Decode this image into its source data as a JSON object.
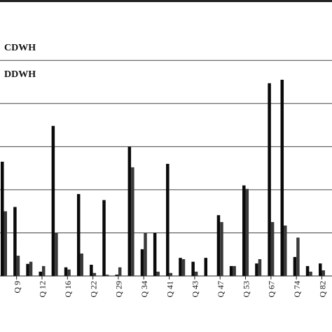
{
  "chart_data": {
    "type": "bar",
    "categories": [
      null,
      "Q 9",
      null,
      "Q 12",
      null,
      "Q 16",
      null,
      "Q 22",
      null,
      "Q 29",
      null,
      "Q 34",
      null,
      "Q 41",
      null,
      "Q 43",
      null,
      "Q 47",
      null,
      "Q 53",
      null,
      "Q 67",
      null,
      "Q 74",
      null,
      "Q 82"
    ],
    "series": [
      {
        "name": "CDWH",
        "color": "#0a0a0a",
        "values": [
          2.65,
          1.6,
          0.28,
          0.1,
          3.48,
          0.2,
          1.9,
          0.26,
          1.76,
          0.03,
          3.0,
          0.62,
          1.0,
          2.6,
          0.42,
          0.33,
          0.42,
          1.41,
          0.23,
          2.1,
          0.29,
          4.47,
          4.55,
          0.44,
          0.23,
          0.29
        ]
      },
      {
        "name": "DDWH",
        "color": "#3a3a3a",
        "values": [
          1.5,
          0.47,
          0.33,
          0.23,
          1.0,
          0.15,
          0.52,
          0.07,
          0.03,
          0.2,
          2.52,
          1.0,
          0.1,
          0.07,
          0.39,
          0.1,
          0,
          1.25,
          0.23,
          2.02,
          0.39,
          1.25,
          1.17,
          0.89,
          0.1,
          0.13
        ]
      }
    ],
    "ylim": [
      0,
      6.4
    ],
    "yticks": [
      0,
      1,
      2,
      3,
      4,
      5
    ],
    "grid": true
  }
}
